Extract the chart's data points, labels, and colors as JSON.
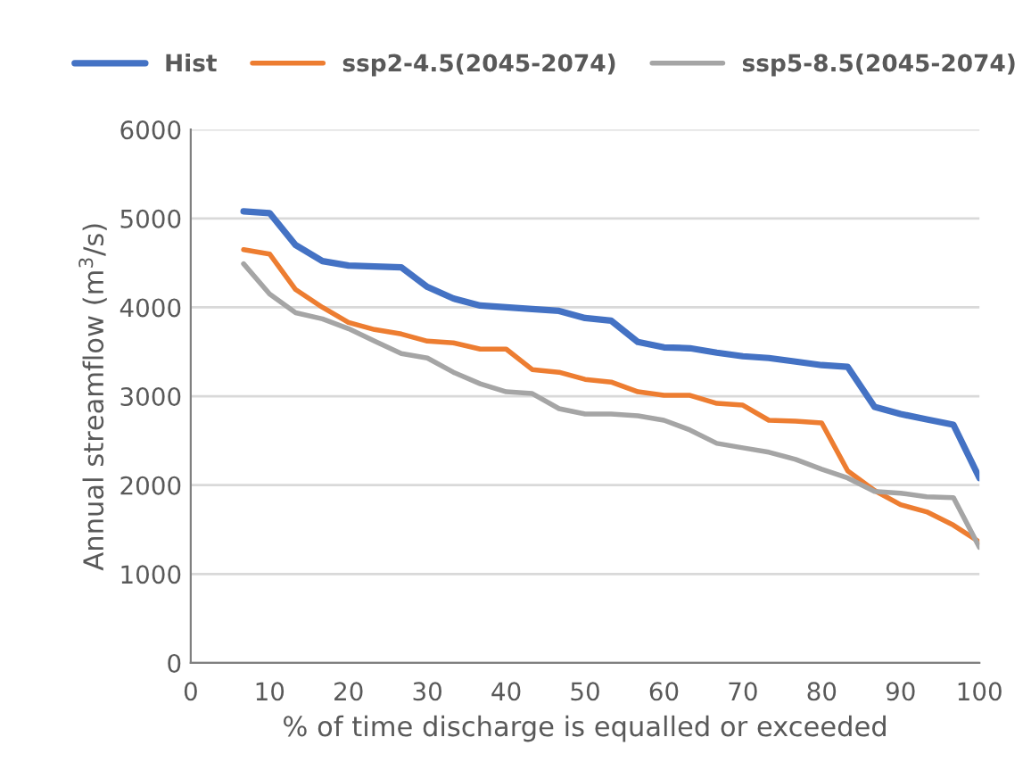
{
  "chart_data": {
    "type": "line",
    "xlabel": "% of time discharge is equalled or exceeded",
    "ylabel": "Annual streamflow (m$^{3}$/s)",
    "x": [
      6.7,
      10,
      13.3,
      16.7,
      20,
      23.3,
      26.7,
      30,
      33.3,
      36.7,
      40,
      43.3,
      46.7,
      50,
      53.3,
      56.7,
      60,
      63.3,
      66.7,
      70,
      73.3,
      76.7,
      80,
      83.3,
      86.7,
      90,
      93.3,
      96.7,
      100
    ],
    "series": [
      {
        "name": "Hist",
        "color": "#4472c4",
        "values": [
          5080,
          5060,
          4700,
          4520,
          4470,
          4460,
          4450,
          4230,
          4100,
          4020,
          4000,
          3980,
          3960,
          3880,
          3850,
          3610,
          3550,
          3540,
          3490,
          3450,
          3430,
          3390,
          3350,
          3330,
          2880,
          2800,
          2740,
          2680,
          2080
        ]
      },
      {
        "name": "ssp2-4.5(2045-2074)",
        "color": "#ed7d31",
        "values": [
          4650,
          4600,
          4200,
          4000,
          3830,
          3750,
          3700,
          3620,
          3600,
          3530,
          3530,
          3300,
          3270,
          3190,
          3160,
          3050,
          3010,
          3010,
          2920,
          2900,
          2730,
          2720,
          2700,
          2160,
          1940,
          1780,
          1700,
          1550,
          1360
        ]
      },
      {
        "name": "ssp5-8.5(2045-2074)",
        "color": "#a5a5a5",
        "values": [
          4490,
          4150,
          3940,
          3870,
          3760,
          3620,
          3480,
          3430,
          3270,
          3140,
          3050,
          3030,
          2860,
          2800,
          2800,
          2780,
          2730,
          2620,
          2470,
          2420,
          2370,
          2290,
          2180,
          2080,
          1930,
          1910,
          1870,
          1860,
          1300
        ]
      }
    ],
    "xlim": [
      0,
      100
    ],
    "xticks": [
      0,
      10,
      20,
      30,
      40,
      50,
      60,
      70,
      80,
      90,
      100
    ],
    "ylim": [
      0,
      6000
    ],
    "yticks": [
      0,
      1000,
      2000,
      3000,
      4000,
      5000,
      6000
    ],
    "grid": "y",
    "legend": "top",
    "marker": "none",
    "line_style": "solid"
  }
}
